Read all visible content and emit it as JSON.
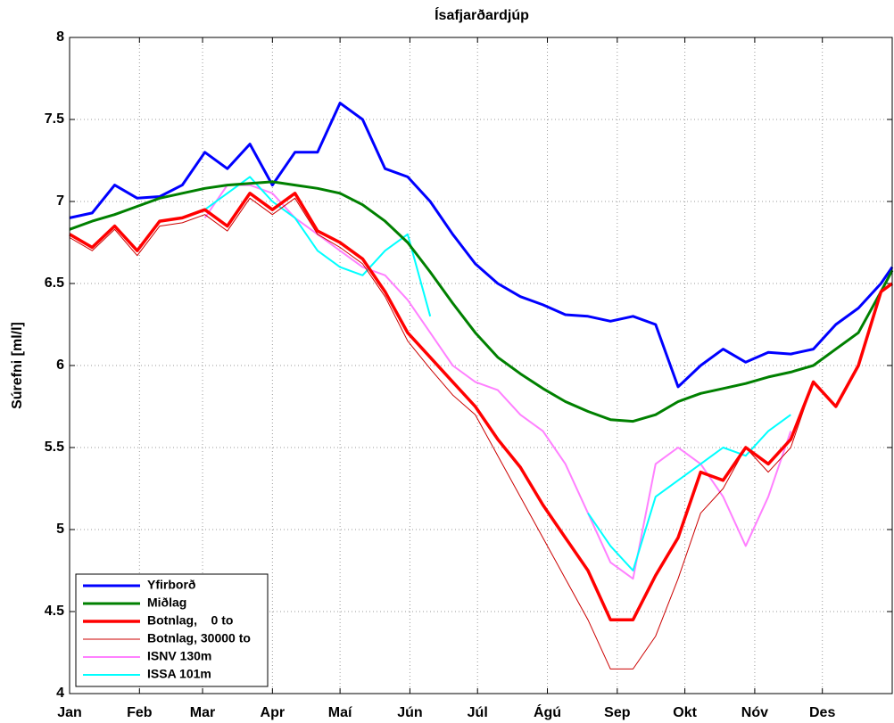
{
  "chart_data": {
    "type": "line",
    "title": "Ísafjarðardjúp",
    "y_label": "Súrefni [ml/l]",
    "x": [
      1,
      11,
      21,
      31,
      41,
      51,
      61,
      71,
      81,
      91,
      101,
      111,
      121,
      131,
      141,
      151,
      161,
      171,
      181,
      191,
      201,
      211,
      221,
      231,
      241,
      251,
      261,
      271,
      281,
      291,
      301,
      311,
      321,
      331,
      341,
      351,
      361,
      366
    ],
    "xlim": [
      1,
      366
    ],
    "xticks": [
      {
        "value": 1,
        "label": "Jan"
      },
      {
        "value": 32,
        "label": "Feb"
      },
      {
        "value": 60,
        "label": "Mar"
      },
      {
        "value": 91,
        "label": "Apr"
      },
      {
        "value": 121,
        "label": "Maí"
      },
      {
        "value": 152,
        "label": "Jún"
      },
      {
        "value": 182,
        "label": "Júl"
      },
      {
        "value": 213,
        "label": "Ágú"
      },
      {
        "value": 244,
        "label": "Sep"
      },
      {
        "value": 274,
        "label": "Okt"
      },
      {
        "value": 305,
        "label": "Nóv"
      },
      {
        "value": 335,
        "label": "Des"
      }
    ],
    "ylim": [
      4,
      8
    ],
    "yticks": [
      4,
      4.5,
      5,
      5.5,
      6,
      6.5,
      7,
      7.5,
      8
    ],
    "grid": true,
    "legend": "lower left",
    "series": [
      {
        "name": "Yfirborð",
        "color": "#0000ff",
        "linewidth": 3,
        "values": [
          6.9,
          6.93,
          7.1,
          7.02,
          7.03,
          7.1,
          7.3,
          7.2,
          7.35,
          7.1,
          7.3,
          7.3,
          7.6,
          7.5,
          7.2,
          7.15,
          7.0,
          6.8,
          6.62,
          6.5,
          6.42,
          6.37,
          6.31,
          6.3,
          6.27,
          6.3,
          6.25,
          5.87,
          6.0,
          6.1,
          6.02,
          6.08,
          6.07,
          6.1,
          6.25,
          6.35,
          6.5,
          6.6
        ]
      },
      {
        "name": "Miðlag",
        "color": "#008000",
        "linewidth": 3,
        "values": [
          6.83,
          6.88,
          6.92,
          6.97,
          7.02,
          7.05,
          7.08,
          7.1,
          7.11,
          7.12,
          7.1,
          7.08,
          7.05,
          6.98,
          6.88,
          6.75,
          6.57,
          6.38,
          6.2,
          6.05,
          5.95,
          5.86,
          5.78,
          5.72,
          5.67,
          5.66,
          5.7,
          5.78,
          5.83,
          5.86,
          5.89,
          5.93,
          5.96,
          6.0,
          6.1,
          6.2,
          6.45,
          6.58
        ]
      },
      {
        "name": "Botnlag,    0 to",
        "color": "#ff0000",
        "linewidth": 3.5,
        "values": [
          6.8,
          6.72,
          6.85,
          6.7,
          6.88,
          6.9,
          6.95,
          6.85,
          7.05,
          6.95,
          7.05,
          6.82,
          6.75,
          6.65,
          6.45,
          6.2,
          6.05,
          5.9,
          5.75,
          5.55,
          5.38,
          5.15,
          4.95,
          4.75,
          4.45,
          4.45,
          4.72,
          4.95,
          5.35,
          5.3,
          5.5,
          5.4,
          5.55,
          5.9,
          5.75,
          6.0,
          6.45,
          6.5
        ]
      },
      {
        "name": "Botnlag, 30000 to",
        "color": "#cc0000",
        "linewidth": 1,
        "values": [
          6.78,
          6.7,
          6.83,
          6.67,
          6.85,
          6.87,
          6.92,
          6.82,
          7.02,
          6.92,
          7.02,
          6.8,
          6.72,
          6.62,
          6.42,
          6.15,
          5.98,
          5.82,
          5.7,
          5.45,
          5.2,
          4.95,
          4.7,
          4.45,
          4.15,
          4.15,
          4.35,
          4.7,
          5.1,
          5.25,
          5.5,
          5.35,
          5.5,
          5.9,
          5.75,
          6.0,
          6.45,
          6.5
        ]
      },
      {
        "name": "ISNV 130m",
        "color": "#ff80ff",
        "linewidth": 2,
        "values": [
          null,
          null,
          null,
          null,
          null,
          null,
          6.9,
          7.1,
          7.1,
          7.05,
          6.9,
          6.8,
          6.7,
          6.6,
          6.55,
          6.4,
          6.2,
          6.0,
          5.9,
          5.85,
          5.7,
          5.6,
          5.4,
          5.1,
          4.8,
          4.7,
          5.4,
          5.5,
          5.4,
          5.2,
          4.9,
          5.2,
          5.6,
          null,
          null,
          null,
          null,
          null
        ]
      },
      {
        "name": "ISSA 101m",
        "color": "#00ffff",
        "linewidth": 2,
        "values": [
          null,
          null,
          null,
          null,
          null,
          null,
          6.95,
          7.05,
          7.15,
          7.0,
          6.9,
          6.7,
          6.6,
          6.55,
          6.7,
          6.8,
          6.3,
          null,
          null,
          null,
          null,
          null,
          null,
          5.1,
          4.9,
          4.75,
          5.2,
          5.3,
          5.4,
          5.5,
          5.45,
          5.6,
          5.7,
          null,
          null,
          null,
          null,
          null
        ]
      }
    ]
  }
}
